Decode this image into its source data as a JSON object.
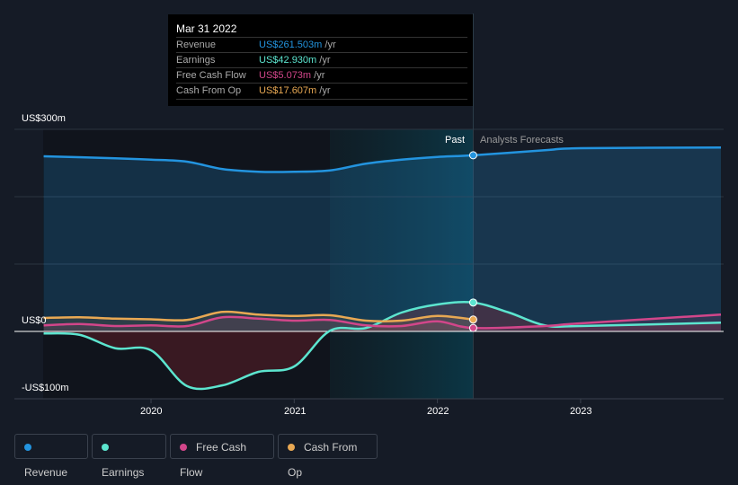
{
  "tooltip": {
    "date": "Mar 31 2022",
    "rows": [
      {
        "label": "Revenue",
        "value": "US$261.503m",
        "unit": "/yr",
        "color": "#2394df"
      },
      {
        "label": "Earnings",
        "value": "US$42.930m",
        "unit": "/yr",
        "color": "#5ce5cf"
      },
      {
        "label": "Free Cash Flow",
        "value": "US$5.073m",
        "unit": "/yr",
        "color": "#d2468a"
      },
      {
        "label": "Cash From Op",
        "value": "US$17.607m",
        "unit": "/yr",
        "color": "#e8a853"
      }
    ]
  },
  "chart_data": {
    "type": "line",
    "title": "",
    "xlabel": "",
    "ylabel": "",
    "ylim": [
      -100,
      300
    ],
    "xlim": [
      2019.25,
      2023.98
    ],
    "y_tick_labels": [
      "US$300m",
      "US$0",
      "-US$100m"
    ],
    "x_tick_labels": [
      "2020",
      "2021",
      "2022",
      "2023"
    ],
    "x_ticks": [
      2020,
      2021,
      2022,
      2023
    ],
    "past_label": "Past",
    "forecast_label": "Analysts Forecasts",
    "divider_x": 2022.25,
    "series": [
      {
        "name": "Revenue",
        "color": "#2394df",
        "x": [
          2019.25,
          2019.75,
          2020,
          2020.25,
          2020.5,
          2020.75,
          2021,
          2021.25,
          2021.5,
          2021.75,
          2022,
          2022.25,
          2022.75,
          2023,
          2023.98
        ],
        "values": [
          260,
          257,
          255,
          252,
          241,
          237,
          237,
          239,
          249,
          255,
          259,
          261.5,
          269,
          272,
          273
        ]
      },
      {
        "name": "Earnings",
        "color": "#5ce5cf",
        "x": [
          2019.25,
          2019.5,
          2019.75,
          2020,
          2020.25,
          2020.5,
          2020.75,
          2021,
          2021.25,
          2021.5,
          2021.75,
          2022,
          2022.25,
          2022.5,
          2022.75,
          2023,
          2023.98
        ],
        "values": [
          -3,
          -5,
          -25,
          -28,
          -81,
          -80,
          -60,
          -52,
          1,
          5,
          28,
          40,
          42.9,
          28,
          9,
          8,
          13
        ]
      },
      {
        "name": "Free Cash Flow",
        "color": "#d2468a",
        "x": [
          2019.25,
          2019.5,
          2019.75,
          2020,
          2020.25,
          2020.5,
          2020.75,
          2021,
          2021.25,
          2021.5,
          2021.75,
          2022,
          2022.25,
          2022.75,
          2023,
          2023.98
        ],
        "values": [
          9,
          11,
          8,
          9,
          8,
          21,
          19,
          16,
          17,
          9,
          8,
          15,
          5.1,
          8,
          12,
          25
        ]
      },
      {
        "name": "Cash From Op",
        "color": "#e8a853",
        "x": [
          2019.25,
          2019.5,
          2019.75,
          2020,
          2020.25,
          2020.5,
          2020.75,
          2021,
          2021.25,
          2021.5,
          2021.75,
          2022,
          2022.25
        ],
        "values": [
          20,
          21,
          19,
          18,
          17,
          29,
          25,
          23,
          24,
          16,
          16,
          23,
          17.6
        ]
      }
    ]
  }
}
